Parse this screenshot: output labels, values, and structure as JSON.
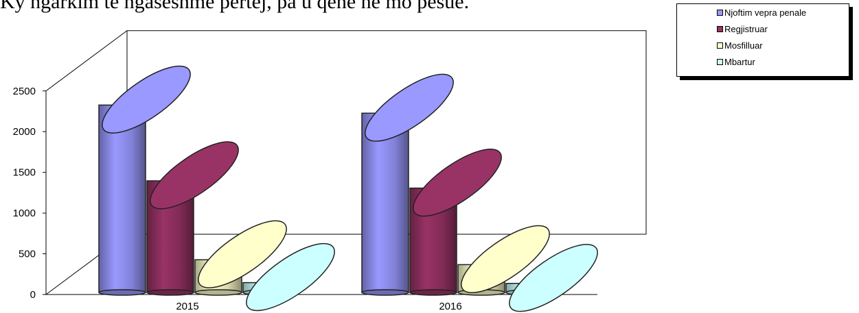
{
  "caption": "Ky ngarkim te ngaseshme pertej, pa u qene ne mo pesue.",
  "chart_data": {
    "type": "bar",
    "categories": [
      "2015",
      "2016"
    ],
    "series": [
      {
        "name": "Njoftim vepra penale",
        "values": [
          2520,
          2420
        ],
        "color": "#9999ff"
      },
      {
        "name": "Regjistruar",
        "values": [
          1590,
          1500
        ],
        "color": "#993366"
      },
      {
        "name": "Mosfilluar",
        "values": [
          620,
          560
        ],
        "color": "#ffffcc"
      },
      {
        "name": "Mbartur",
        "values": [
          340,
          330
        ],
        "color": "#ccffff"
      }
    ],
    "yticks": [
      0,
      500,
      1000,
      1500,
      2000,
      2500
    ],
    "ylim": [
      0,
      2500
    ],
    "legend_position": "top-right",
    "style": "3d-cylinder"
  }
}
